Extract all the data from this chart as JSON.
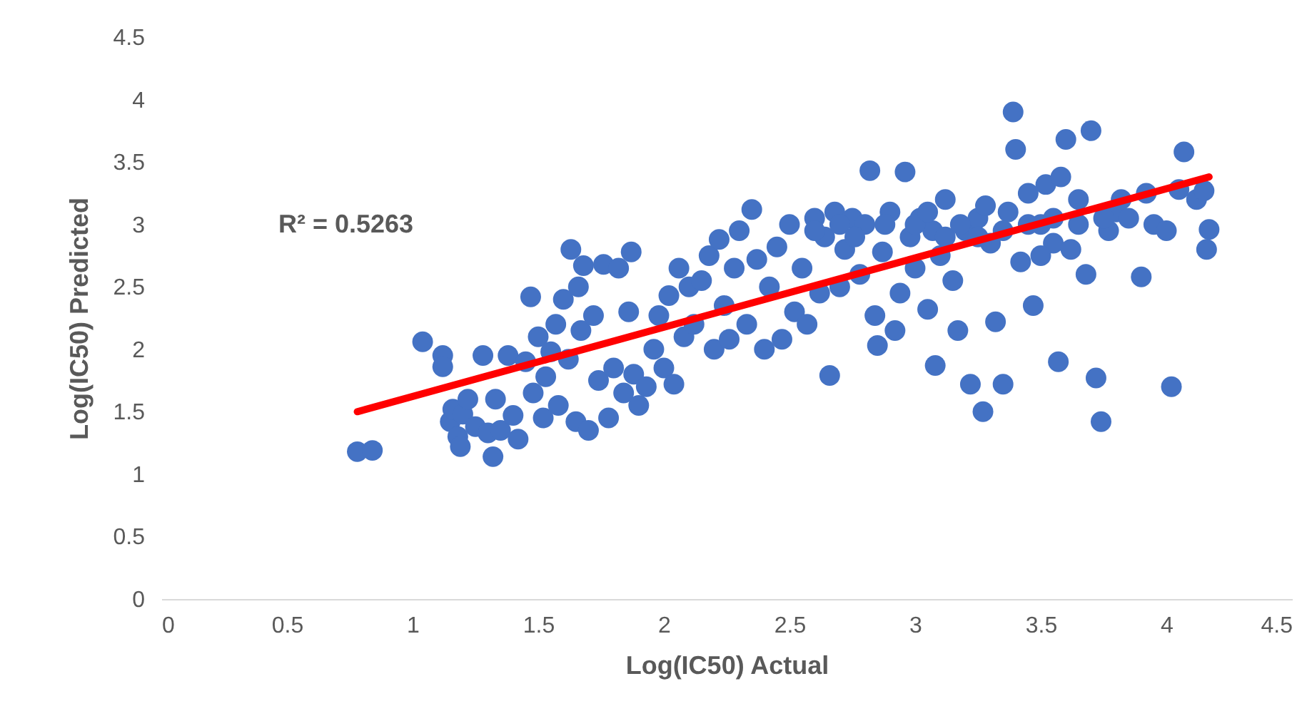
{
  "chart_data": {
    "type": "scatter",
    "xlabel": "Log(IC50) Actual",
    "ylabel": "Log(IC50) Predicted",
    "xlim": [
      0,
      4.5
    ],
    "xticks": [
      0,
      0.5,
      1,
      1.5,
      2,
      2.5,
      3,
      3.5,
      4,
      4.5
    ],
    "ylim": [
      0,
      4.5
    ],
    "yticks": [
      0,
      0.5,
      1,
      1.5,
      2,
      2.5,
      3,
      3.5,
      4,
      4.5
    ],
    "grid": false,
    "annotations": [
      "R² = 0.5263"
    ],
    "series": [
      {
        "color": "#4472c4",
        "marker": "circle",
        "x": [
          0.78,
          0.84,
          1.04,
          1.12,
          1.12,
          1.15,
          1.16,
          1.18,
          1.19,
          1.2,
          1.22,
          1.25,
          1.28,
          1.3,
          1.32,
          1.33,
          1.35,
          1.38,
          1.4,
          1.42,
          1.45,
          1.47,
          1.48,
          1.5,
          1.52,
          1.53,
          1.55,
          1.57,
          1.58,
          1.6,
          1.62,
          1.63,
          1.65,
          1.66,
          1.67,
          1.68,
          1.7,
          1.72,
          1.74,
          1.76,
          1.78,
          1.8,
          1.82,
          1.84,
          1.86,
          1.87,
          1.88,
          1.9,
          1.93,
          1.96,
          1.98,
          2.0,
          2.02,
          2.04,
          2.06,
          2.08,
          2.1,
          2.12,
          2.15,
          2.18,
          2.2,
          2.22,
          2.24,
          2.26,
          2.28,
          2.3,
          2.33,
          2.35,
          2.37,
          2.4,
          2.42,
          2.45,
          2.47,
          2.5,
          2.52,
          2.55,
          2.57,
          2.6,
          2.62,
          2.64,
          2.66,
          2.68,
          2.7,
          2.72,
          2.75,
          2.78,
          2.8,
          2.82,
          2.84,
          2.85,
          2.87,
          2.9,
          2.92,
          2.94,
          2.96,
          2.98,
          3.0,
          3.02,
          3.05,
          3.07,
          3.08,
          3.1,
          3.12,
          3.15,
          3.17,
          3.2,
          3.22,
          3.25,
          3.27,
          3.3,
          3.32,
          3.35,
          3.37,
          3.39,
          3.4,
          3.42,
          3.45,
          3.47,
          3.5,
          3.52,
          3.55,
          3.57,
          3.58,
          3.6,
          3.62,
          3.65,
          3.68,
          3.7,
          3.72,
          3.74,
          3.77,
          3.8,
          3.82,
          3.9,
          3.92,
          3.95,
          4.0,
          4.02,
          4.05,
          4.07,
          4.12,
          4.15,
          4.16,
          4.17,
          2.6,
          2.7,
          2.76,
          2.88,
          3.0,
          3.05,
          3.12,
          3.18,
          3.25,
          3.28,
          3.35,
          3.45,
          3.5,
          3.55,
          3.65,
          3.75,
          3.85
        ],
        "values": [
          1.18,
          1.19,
          2.06,
          1.95,
          1.86,
          1.42,
          1.52,
          1.3,
          1.22,
          1.48,
          1.6,
          1.38,
          1.95,
          1.33,
          1.14,
          1.6,
          1.35,
          1.95,
          1.47,
          1.28,
          1.9,
          2.42,
          1.65,
          2.1,
          1.45,
          1.78,
          1.98,
          2.2,
          1.55,
          2.4,
          1.92,
          2.8,
          1.42,
          2.5,
          2.15,
          2.67,
          1.35,
          2.27,
          1.75,
          2.68,
          1.45,
          1.85,
          2.65,
          1.65,
          2.3,
          2.78,
          1.8,
          1.55,
          1.7,
          2.0,
          2.27,
          1.85,
          2.43,
          1.72,
          2.65,
          2.1,
          2.5,
          2.2,
          2.55,
          2.75,
          2.0,
          2.88,
          2.35,
          2.08,
          2.65,
          2.95,
          2.2,
          3.12,
          2.72,
          2.0,
          2.5,
          2.82,
          2.08,
          3.0,
          2.3,
          2.65,
          2.2,
          3.05,
          2.45,
          2.9,
          1.79,
          3.1,
          2.5,
          2.8,
          3.05,
          2.6,
          3.0,
          3.43,
          2.27,
          2.03,
          2.78,
          3.1,
          2.15,
          2.45,
          3.42,
          2.9,
          2.65,
          3.05,
          2.32,
          2.95,
          1.87,
          2.75,
          3.2,
          2.55,
          2.15,
          2.95,
          1.72,
          3.05,
          1.5,
          2.85,
          2.22,
          1.72,
          3.1,
          3.9,
          3.6,
          2.7,
          3.25,
          2.35,
          3.0,
          3.32,
          2.85,
          1.9,
          3.38,
          3.68,
          2.8,
          3.2,
          2.6,
          3.75,
          1.77,
          1.42,
          2.95,
          3.1,
          3.2,
          2.58,
          3.25,
          3.0,
          2.95,
          1.7,
          3.28,
          3.58,
          3.2,
          3.27,
          2.8,
          2.96,
          2.95,
          3.0,
          2.9,
          3.0,
          3.0,
          3.1,
          2.9,
          3.0,
          2.9,
          3.15,
          2.95,
          3.0,
          2.75,
          3.05,
          3.0,
          3.05,
          3.05
        ]
      },
      {
        "type": "line",
        "color": "#ff0000",
        "x": [
          0.78,
          4.17
        ],
        "values": [
          1.5,
          3.38
        ]
      }
    ]
  }
}
